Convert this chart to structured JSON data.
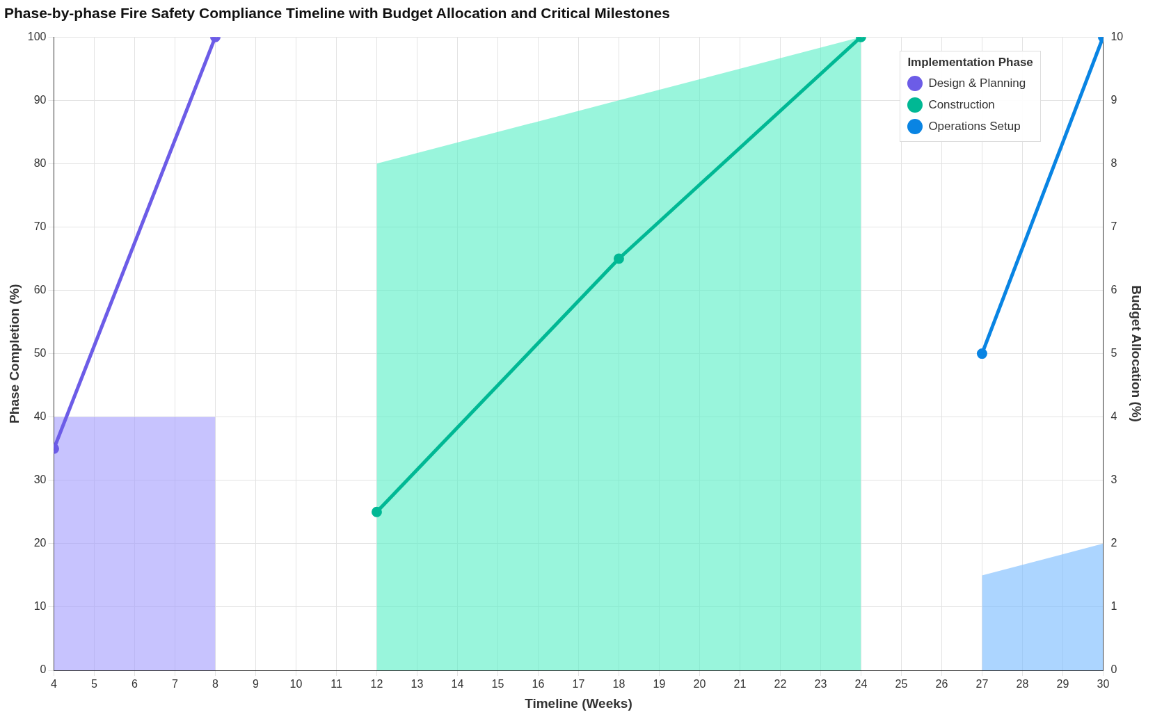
{
  "chart_data": {
    "type": "line",
    "title": "Phase-by-phase Fire Safety Compliance Timeline with Budget Allocation and Critical Milestones",
    "xlabel": "Timeline (Weeks)",
    "ylabel": "Phase Completion (%)",
    "y2label": "Budget Allocation (%)",
    "legend_title": "Implementation Phase",
    "series": [
      {
        "type": "area",
        "axis": "y2",
        "color": "#a29bfe",
        "marker": "none",
        "x": [
          4,
          8
        ],
        "values": [
          4,
          4
        ]
      },
      {
        "type": "area",
        "axis": "y2",
        "color": "#55efc4",
        "marker": "none",
        "x": [
          12,
          18,
          24
        ],
        "values": [
          8,
          9,
          10
        ]
      },
      {
        "type": "area",
        "axis": "y2",
        "color": "#74b9ff",
        "marker": "none",
        "x": [
          27,
          30
        ],
        "values": [
          1.5,
          2
        ]
      },
      {
        "name": "Design & Planning",
        "color": "#6c5ce7",
        "marker": "circle",
        "x": [
          4,
          8
        ],
        "values": [
          35,
          100
        ]
      },
      {
        "name": "Construction",
        "color": "#00b894",
        "marker": "circle",
        "x": [
          12,
          18,
          24
        ],
        "values": [
          25,
          65,
          100
        ]
      },
      {
        "name": "Operations Setup",
        "color": "#0984e3",
        "marker": "circle",
        "x": [
          27,
          30
        ],
        "values": [
          50,
          100
        ]
      }
    ],
    "xlim": [
      4,
      30
    ],
    "xticks": [
      4,
      5,
      6,
      7,
      8,
      9,
      10,
      11,
      12,
      13,
      14,
      15,
      16,
      17,
      18,
      19,
      20,
      21,
      22,
      23,
      24,
      25,
      26,
      27,
      28,
      29,
      30
    ],
    "ylim": [
      0,
      100
    ],
    "yticks": [
      0,
      10,
      20,
      30,
      40,
      50,
      60,
      70,
      80,
      90,
      100
    ],
    "y2lim": [
      0,
      10
    ],
    "y2ticks": [
      0,
      1,
      2,
      3,
      4,
      5,
      6,
      7,
      8,
      9,
      10
    ],
    "grid": true,
    "legend": "top right",
    "line_style": "solid"
  }
}
